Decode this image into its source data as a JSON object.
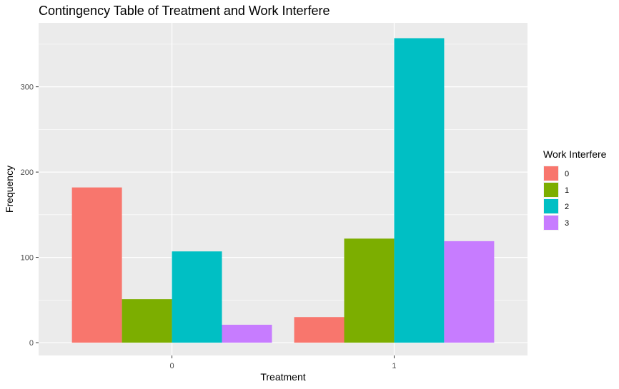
{
  "chart_data": {
    "type": "bar",
    "title": "Contingency Table of Treatment and Work Interfere",
    "xlabel": "Treatment",
    "ylabel": "Frequency",
    "categories": [
      "0",
      "1"
    ],
    "series": [
      {
        "name": "0",
        "values": [
          182,
          30
        ],
        "color": "#F8766D"
      },
      {
        "name": "1",
        "values": [
          51,
          122
        ],
        "color": "#7CAE00"
      },
      {
        "name": "2",
        "values": [
          107,
          357
        ],
        "color": "#00BFC4"
      },
      {
        "name": "3",
        "values": [
          21,
          119
        ],
        "color": "#C77CFF"
      }
    ],
    "ylim": [
      -15,
      375
    ],
    "yticks": [
      0,
      100,
      200,
      300
    ],
    "grid": true,
    "legend": {
      "title": "Work Interfere",
      "position": "right"
    },
    "background_color": "#EBEBEB",
    "grid_color": "#FFFFFF"
  }
}
